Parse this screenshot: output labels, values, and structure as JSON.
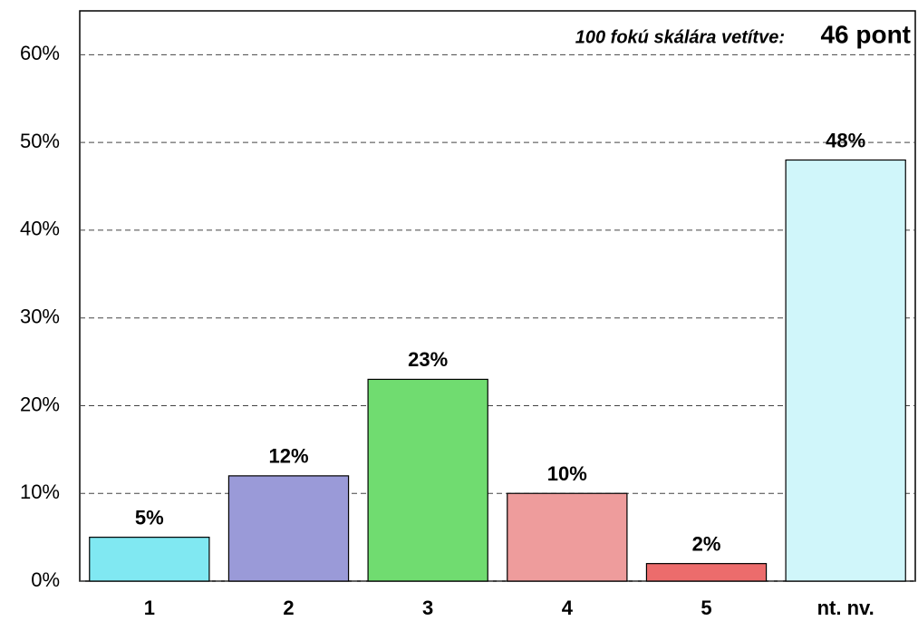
{
  "chart_data": {
    "type": "bar",
    "annotation": "100 fokú skálára vetítve:",
    "annotation_value": "46 pont",
    "categories": [
      "1",
      "2",
      "3",
      "4",
      "5",
      "nt. nv."
    ],
    "values": [
      5,
      12,
      23,
      10,
      2,
      48
    ],
    "value_labels": [
      "5%",
      "12%",
      "23%",
      "10%",
      "2%",
      "48%"
    ],
    "colors": [
      "#80e8f2",
      "#9a9ad8",
      "#70dc70",
      "#ee9c9c",
      "#ec6c6c",
      "#d0f6fa"
    ],
    "ylim": [
      0,
      65
    ],
    "yticks": [
      {
        "value": 0,
        "label": "0%"
      },
      {
        "value": 10,
        "label": "10%"
      },
      {
        "value": 20,
        "label": "20%"
      },
      {
        "value": 30,
        "label": "30%"
      },
      {
        "value": 40,
        "label": "40%"
      },
      {
        "value": 50,
        "label": "50%"
      },
      {
        "value": 60,
        "label": "60%"
      }
    ],
    "grid": true
  }
}
